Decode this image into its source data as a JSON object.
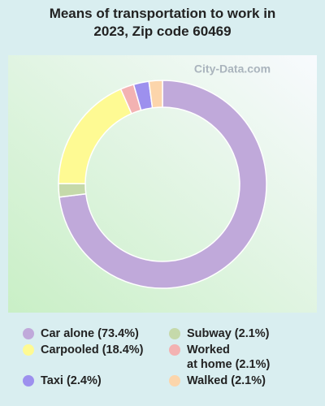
{
  "chart_data": {
    "type": "donut",
    "title": "Means of transportation to work in 2023, Zip code 60469",
    "watermark": "City-Data.com",
    "categories": [
      "Car alone",
      "Subway",
      "Carpooled",
      "Worked\nat home",
      "Taxi",
      "Walked"
    ],
    "values": [
      73.4,
      2.1,
      18.4,
      2.1,
      2.4,
      2.1
    ],
    "value_labels": [
      "(73.4%)",
      "(2.1%)",
      "(18.4%)",
      "(2.1%)",
      "(2.4%)",
      "(2.1%)"
    ],
    "colors": [
      "#c0a9da",
      "#c5d9aa",
      "#fefa93",
      "#f3b2b2",
      "#9d90ee",
      "#fcd5ab"
    ]
  }
}
